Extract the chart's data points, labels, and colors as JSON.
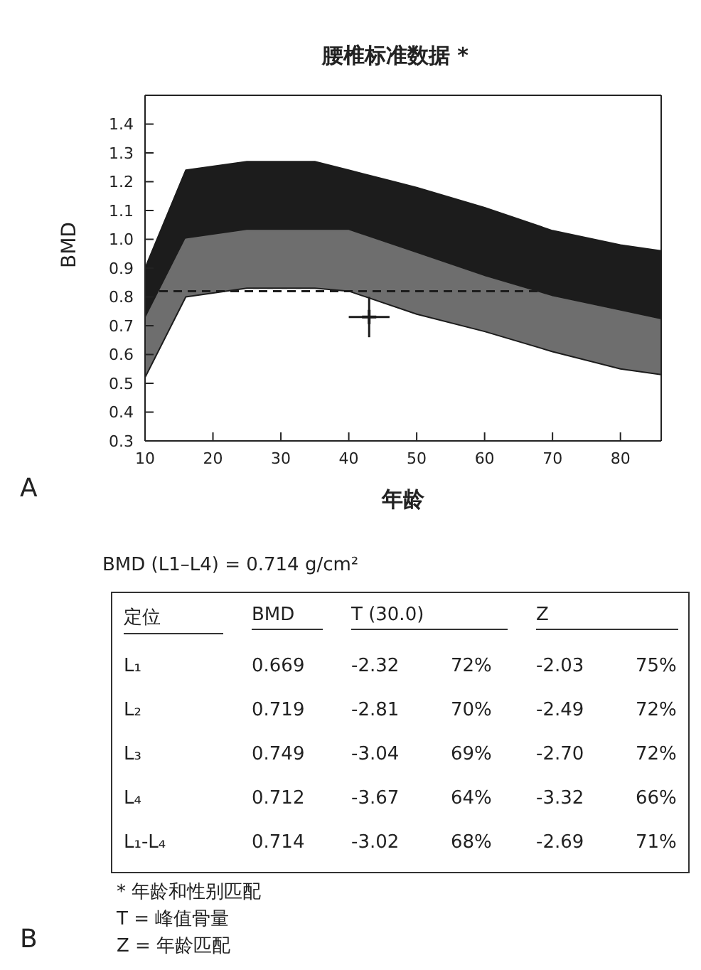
{
  "chart_data": [
    {
      "type": "area",
      "title": "腰椎标准数据 *",
      "xlabel": "年龄",
      "ylabel": "BMD",
      "x": [
        10,
        16,
        25,
        35,
        40,
        50,
        60,
        70,
        80,
        86
      ],
      "series": [
        {
          "color": "#1c1c1c",
          "values": [
            0.9,
            1.24,
            1.27,
            1.27,
            1.24,
            1.18,
            1.11,
            1.03,
            0.98,
            0.96
          ]
        },
        {
          "color": "#6e6e6e",
          "values": [
            0.72,
            1.0,
            1.03,
            1.03,
            1.03,
            0.95,
            0.87,
            0.8,
            0.75,
            0.72
          ]
        },
        {
          "color": "#ffffff",
          "values": [
            0.52,
            0.8,
            0.83,
            0.83,
            0.82,
            0.74,
            0.68,
            0.61,
            0.55,
            0.53
          ]
        },
        {
          "type": "scatter",
          "color": "#1c1c1c",
          "x": [
            43
          ],
          "values": [
            0.73
          ],
          "errors": [
            0.07
          ],
          "xerrors": [
            3
          ],
          "marker": "cross"
        }
      ],
      "ref_lines": [
        {
          "axis": "y",
          "value": 0.82,
          "line_style": "dashed",
          "color": "#1c1c1c"
        }
      ],
      "xlim": [
        10,
        86
      ],
      "xticks": [
        10,
        20,
        30,
        40,
        50,
        60,
        70,
        80
      ],
      "ylim": [
        0.3,
        1.5
      ],
      "yticks": [
        0.3,
        0.4,
        0.5,
        0.6,
        0.7,
        0.8,
        0.9,
        {
          "value": 1.0,
          "label": "1.0"
        },
        1.1,
        1.2,
        1.3,
        1.4
      ],
      "annotations": [
        "A"
      ]
    },
    {
      "type": "other",
      "title": "BMD (L1–L4) = 0.714 g/cm²",
      "categories": [
        "定位",
        "BMD",
        "T (30.0)",
        "Z"
      ],
      "y_categories": [
        "L₁",
        "L₂",
        "L₃",
        "L₄",
        "L₁-L₄"
      ],
      "cell_labels": [
        [
          "0.669",
          "-2.32",
          "72%",
          "-2.03",
          "75%"
        ],
        [
          "0.719",
          "-2.81",
          "70%",
          "-2.49",
          "72%"
        ],
        [
          "0.749",
          "-3.04",
          "69%",
          "-2.70",
          "72%"
        ],
        [
          "0.712",
          "-3.67",
          "64%",
          "-3.32",
          "66%"
        ],
        [
          "0.714",
          "-3.02",
          "68%",
          "-2.69",
          "71%"
        ]
      ],
      "annotations": [
        "B",
        "* 年龄和性别匹配",
        "T = 峰值骨量",
        "Z = 年龄匹配"
      ]
    }
  ]
}
